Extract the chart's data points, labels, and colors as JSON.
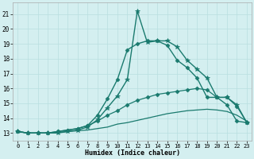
{
  "xlabel": "Humidex (Indice chaleur)",
  "bg_color": "#d4eff0",
  "grid_color": "#b8dfe0",
  "line_color": "#1a7a6e",
  "xlim": [
    -0.5,
    23.5
  ],
  "ylim": [
    12.5,
    21.8
  ],
  "xticks": [
    0,
    1,
    2,
    3,
    4,
    5,
    6,
    7,
    8,
    9,
    10,
    11,
    12,
    13,
    14,
    15,
    16,
    17,
    18,
    19,
    20,
    21,
    22,
    23
  ],
  "yticks": [
    13,
    14,
    15,
    16,
    17,
    18,
    19,
    20,
    21
  ],
  "series": [
    {
      "x": [
        0,
        1,
        2,
        3,
        4,
        5,
        6,
        7,
        8,
        9,
        10,
        11,
        12,
        13,
        14,
        15,
        16,
        17,
        18,
        19,
        20,
        21,
        22,
        23
      ],
      "y": [
        13.1,
        13.0,
        13.0,
        13.0,
        13.0,
        13.1,
        13.2,
        13.4,
        13.9,
        14.7,
        15.5,
        16.6,
        21.2,
        19.1,
        19.2,
        19.2,
        18.8,
        17.9,
        17.3,
        16.7,
        15.4,
        15.4,
        14.9,
        13.7
      ],
      "marker": "*",
      "markersize": 4,
      "linewidth": 1.0
    },
    {
      "x": [
        0,
        1,
        2,
        3,
        4,
        5,
        6,
        7,
        8,
        9,
        10,
        11,
        12,
        13,
        14,
        15,
        16,
        17,
        18,
        19,
        20,
        21,
        22,
        23
      ],
      "y": [
        13.1,
        13.0,
        13.0,
        13.0,
        13.1,
        13.2,
        13.3,
        13.5,
        14.2,
        15.3,
        16.6,
        18.6,
        19.0,
        19.2,
        19.2,
        18.9,
        17.9,
        17.4,
        16.7,
        15.4,
        15.4,
        14.9,
        13.8,
        13.7
      ],
      "marker": "D",
      "markersize": 2.5,
      "linewidth": 1.0
    },
    {
      "x": [
        0,
        1,
        2,
        3,
        4,
        5,
        6,
        7,
        8,
        9,
        10,
        11,
        12,
        13,
        14,
        15,
        16,
        17,
        18,
        19,
        20,
        21,
        22,
        23
      ],
      "y": [
        13.1,
        13.0,
        13.0,
        13.0,
        13.1,
        13.2,
        13.3,
        13.5,
        13.8,
        14.2,
        14.5,
        14.9,
        15.2,
        15.4,
        15.6,
        15.7,
        15.8,
        15.9,
        16.0,
        15.9,
        15.4,
        15.4,
        14.8,
        13.7
      ],
      "marker": "D",
      "markersize": 2.5,
      "linewidth": 0.9
    },
    {
      "x": [
        0,
        1,
        2,
        3,
        4,
        5,
        6,
        7,
        8,
        9,
        10,
        11,
        12,
        13,
        14,
        15,
        16,
        17,
        18,
        19,
        20,
        21,
        22,
        23
      ],
      "y": [
        13.1,
        13.0,
        13.0,
        13.0,
        13.05,
        13.1,
        13.15,
        13.2,
        13.3,
        13.4,
        13.6,
        13.7,
        13.85,
        14.0,
        14.15,
        14.3,
        14.4,
        14.5,
        14.55,
        14.6,
        14.55,
        14.45,
        14.2,
        13.8
      ],
      "marker": null,
      "markersize": 0,
      "linewidth": 0.9
    }
  ]
}
